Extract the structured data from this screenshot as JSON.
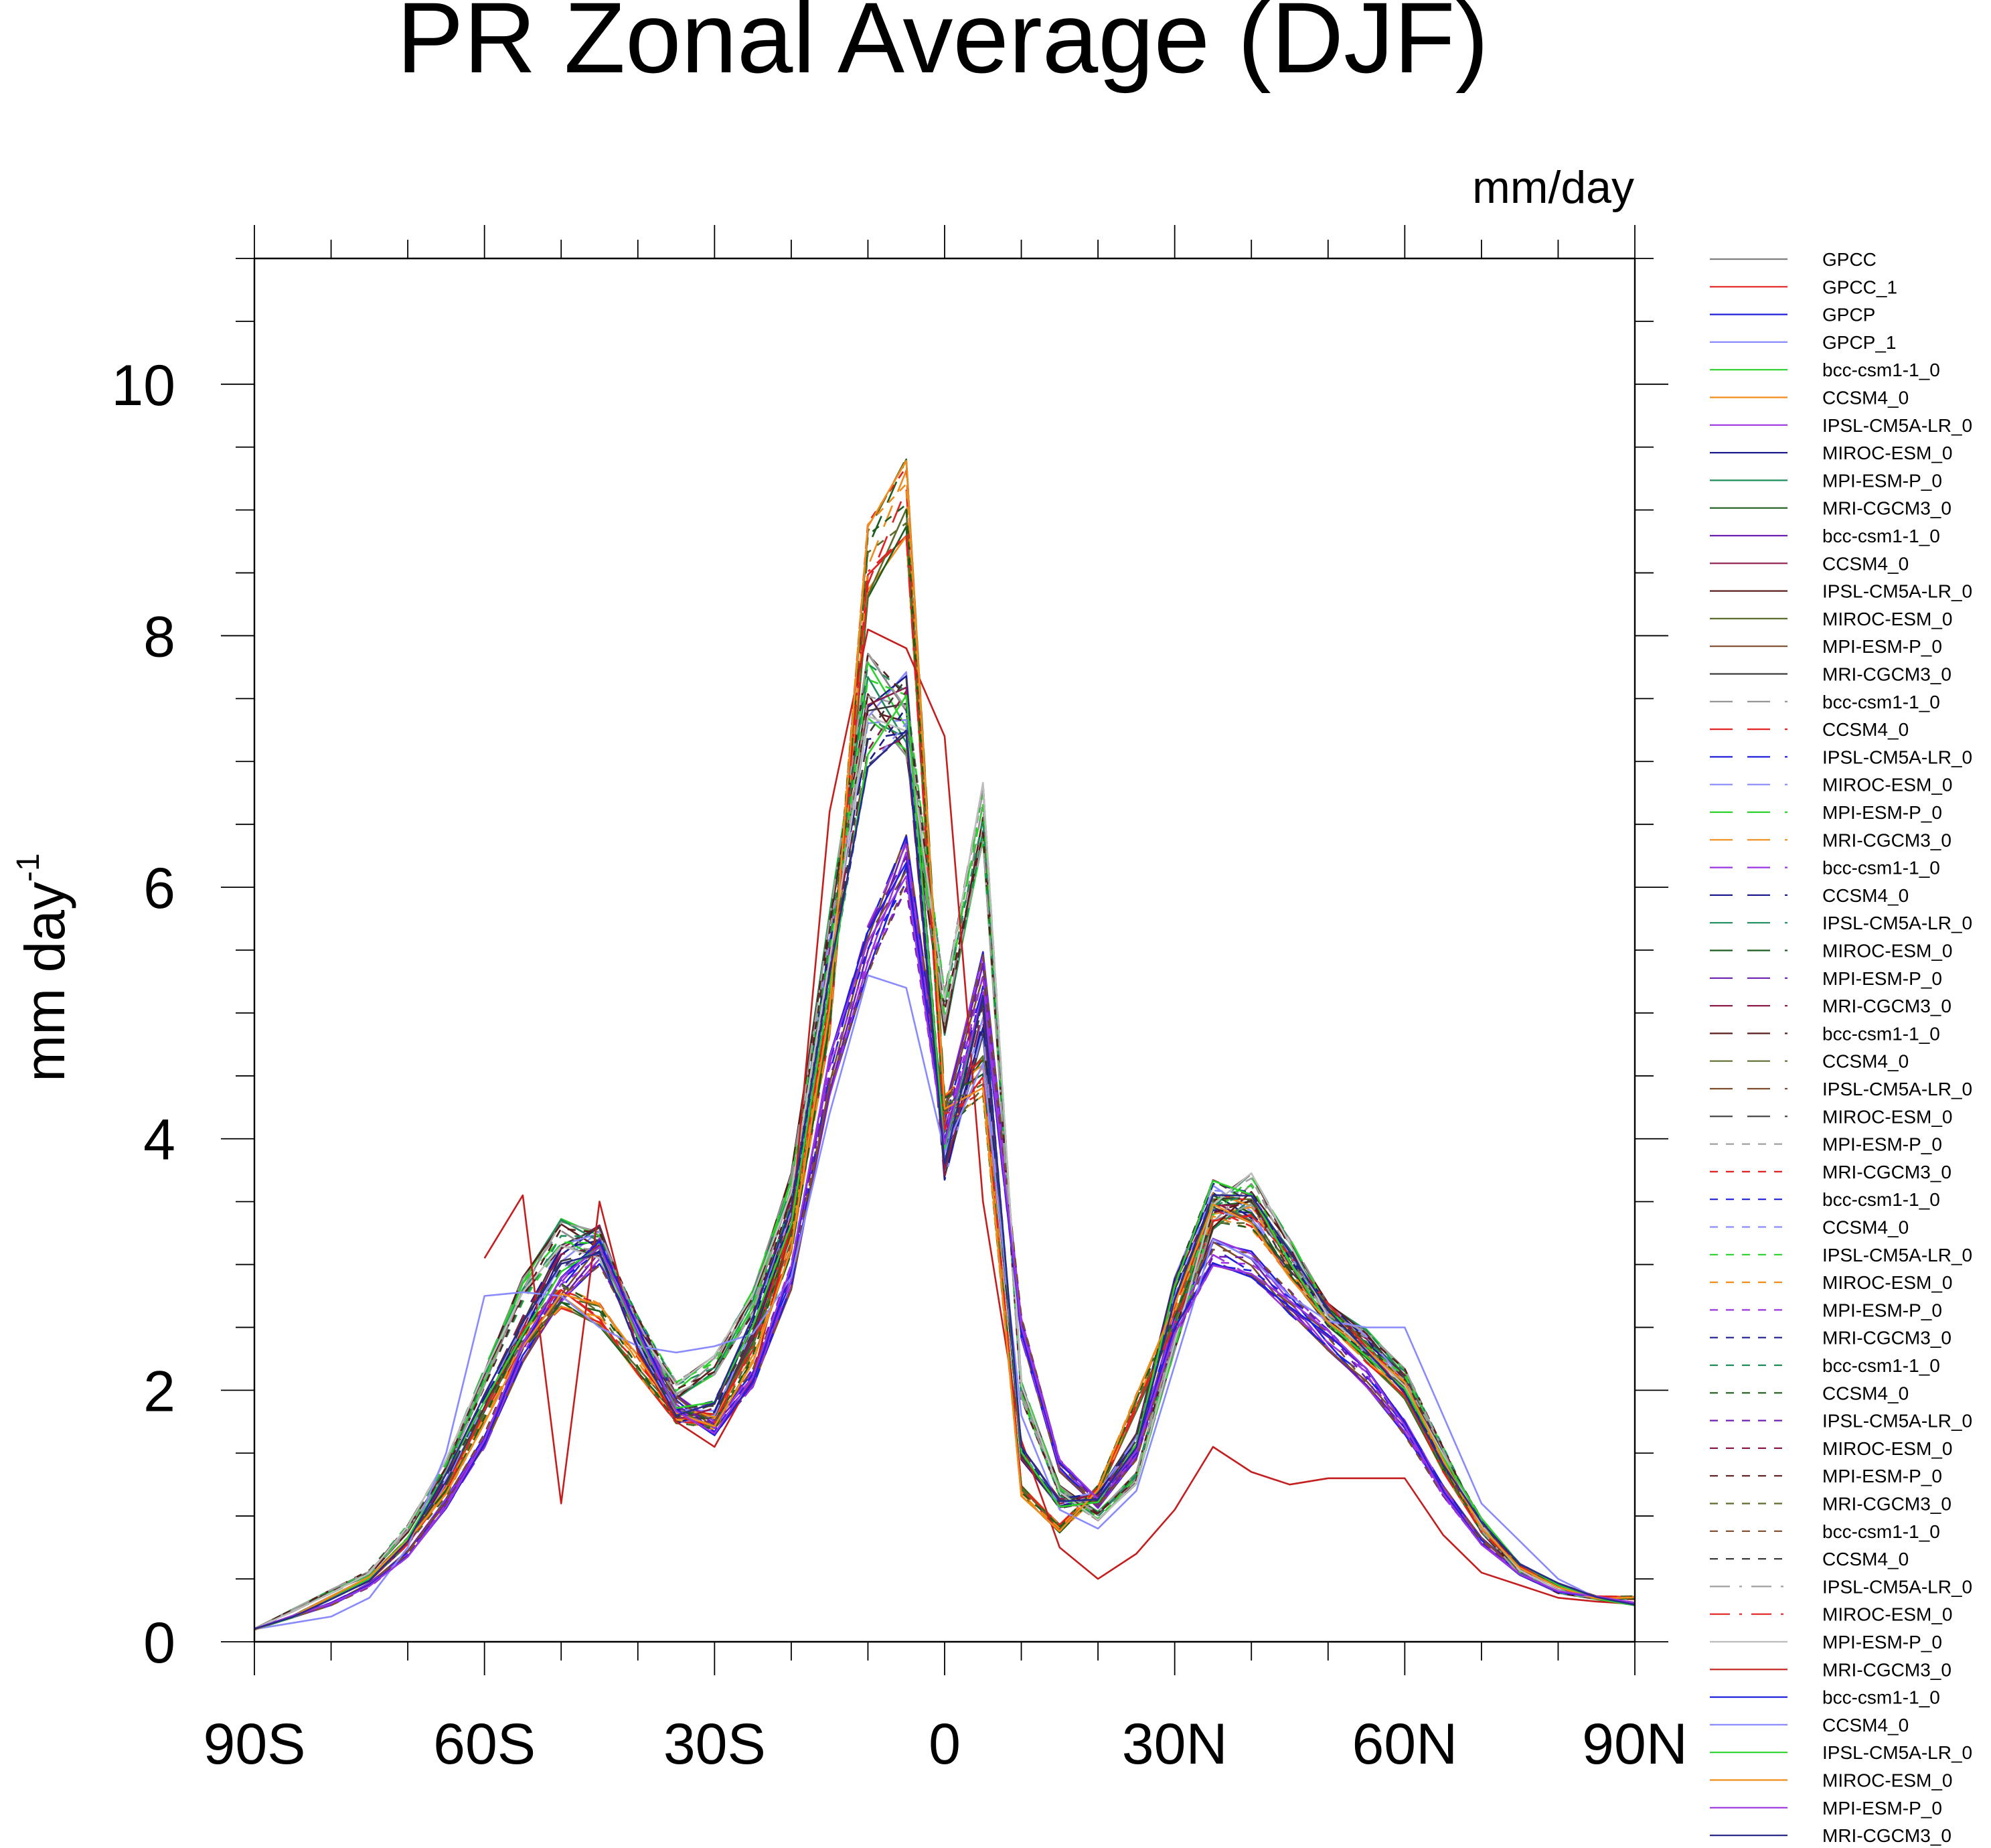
{
  "chart_data": {
    "type": "line",
    "title": "PR Zonal Average (DJF)",
    "units_label": "mm/day",
    "ylabel": "mm day",
    "ylabel_superscript": "-1",
    "xlabel": "",
    "xlim": [
      -90,
      90
    ],
    "ylim": [
      0,
      11
    ],
    "grid": false,
    "legend_position": "right",
    "x_ticks": [
      {
        "value": -90,
        "label": "90S"
      },
      {
        "value": -60,
        "label": "60S"
      },
      {
        "value": -30,
        "label": "30S"
      },
      {
        "value": 0,
        "label": "0"
      },
      {
        "value": 30,
        "label": "30N"
      },
      {
        "value": 60,
        "label": "60N"
      },
      {
        "value": 90,
        "label": "90N"
      }
    ],
    "y_ticks": [
      {
        "value": 0,
        "label": "0"
      },
      {
        "value": 2,
        "label": "2"
      },
      {
        "value": 4,
        "label": "4"
      },
      {
        "value": 6,
        "label": "6"
      },
      {
        "value": 8,
        "label": "8"
      },
      {
        "value": 10,
        "label": "10"
      }
    ],
    "x": [
      -90,
      -85,
      -80,
      -75,
      -70,
      -65,
      -60,
      -55,
      -50,
      -45,
      -40,
      -35,
      -30,
      -25,
      -20,
      -15,
      -10,
      -5,
      0,
      5,
      10,
      15,
      20,
      25,
      30,
      35,
      40,
      45,
      50,
      55,
      60,
      65,
      70,
      75,
      80,
      85,
      90
    ],
    "base_profiles": {
      "A": [
        0.1,
        0.25,
        0.4,
        0.55,
        0.9,
        1.4,
        2.1,
        2.8,
        3.25,
        3.15,
        2.5,
        2.0,
        2.2,
        2.7,
        3.6,
        5.6,
        7.6,
        7.3,
        5.0,
        6.6,
        2.0,
        1.2,
        1.0,
        1.3,
        2.4,
        3.4,
        3.6,
        3.1,
        2.6,
        2.4,
        2.1,
        1.5,
        0.9,
        0.55,
        0.4,
        0.35,
        0.3
      ],
      "B": [
        0.1,
        0.2,
        0.35,
        0.5,
        0.8,
        1.2,
        1.8,
        2.4,
        2.75,
        2.6,
        2.2,
        1.8,
        1.75,
        2.3,
        3.2,
        5.0,
        8.6,
        9.1,
        4.2,
        4.5,
        1.2,
        0.9,
        1.2,
        1.9,
        2.6,
        3.45,
        3.4,
        3.0,
        2.6,
        2.3,
        2.0,
        1.4,
        0.9,
        0.6,
        0.45,
        0.35,
        0.35
      ],
      "C": [
        0.1,
        0.2,
        0.3,
        0.45,
        0.7,
        1.1,
        1.6,
        2.3,
        2.8,
        3.1,
        2.5,
        1.9,
        1.7,
        2.1,
        2.9,
        4.5,
        5.5,
        6.2,
        4.1,
        5.3,
        2.5,
        1.4,
        1.1,
        1.5,
        2.5,
        3.1,
        3.0,
        2.7,
        2.4,
        2.1,
        1.7,
        1.2,
        0.8,
        0.55,
        0.4,
        0.35,
        0.3
      ],
      "D": [
        0.1,
        0.2,
        0.35,
        0.5,
        0.8,
        1.3,
        1.9,
        2.5,
        3.05,
        3.2,
        2.4,
        1.8,
        1.85,
        2.5,
        3.4,
        5.4,
        7.2,
        7.45,
        3.8,
        5.0,
        1.5,
        1.1,
        1.15,
        1.6,
        2.8,
        3.55,
        3.45,
        3.0,
        2.6,
        2.35,
        2.05,
        1.45,
        0.95,
        0.6,
        0.45,
        0.35,
        0.3
      ]
    },
    "series": [
      {
        "name": "GPCC",
        "color": "#7f7f7f",
        "dash": "solid",
        "profile": "A"
      },
      {
        "name": "GPCC_1",
        "color": "#e32121",
        "dash": "solid",
        "profile": "B"
      },
      {
        "name": "GPCP",
        "color": "#1f1fdf",
        "dash": "solid",
        "profile": "C"
      },
      {
        "name": "GPCP_1",
        "color": "#8a8aff",
        "dash": "solid",
        "profile": "D"
      },
      {
        "name": "bcc-csm1-1_0",
        "color": "#2bd12b",
        "dash": "solid",
        "profile": "A"
      },
      {
        "name": "CCSM4_0",
        "color": "#f08c1a",
        "dash": "solid",
        "profile": "B"
      },
      {
        "name": "IPSL-CM5A-LR_0",
        "color": "#9c35e0",
        "dash": "solid",
        "profile": "C"
      },
      {
        "name": "MIROC-ESM_0",
        "color": "#1c1c8c",
        "dash": "solid",
        "profile": "D"
      },
      {
        "name": "MPI-ESM-P_0",
        "color": "#1f8c5c",
        "dash": "solid",
        "profile": "A"
      },
      {
        "name": "MRI-CGCM3_0",
        "color": "#1c5c1c",
        "dash": "solid",
        "profile": "B"
      },
      {
        "name": "bcc-csm1-1_0",
        "color": "#6a1fb0",
        "dash": "solid",
        "profile": "C"
      },
      {
        "name": "CCSM4_0",
        "color": "#8c1c4c",
        "dash": "solid",
        "profile": "D"
      },
      {
        "name": "IPSL-CM5A-LR_0",
        "color": "#5c1c1c",
        "dash": "solid",
        "profile": "A"
      },
      {
        "name": "MIROC-ESM_0",
        "color": "#5c6c2c",
        "dash": "solid",
        "profile": "B"
      },
      {
        "name": "MPI-ESM-P_0",
        "color": "#7c4c2c",
        "dash": "solid",
        "profile": "C"
      },
      {
        "name": "MRI-CGCM3_0",
        "color": "#3c3c3c",
        "dash": "solid",
        "profile": "D"
      },
      {
        "name": "bcc-csm1-1_0",
        "color": "#8f8f8f",
        "dash": "long",
        "profile": "A"
      },
      {
        "name": "CCSM4_0",
        "color": "#e32121",
        "dash": "long",
        "profile": "B"
      },
      {
        "name": "IPSL-CM5A-LR_0",
        "color": "#1f1fdf",
        "dash": "long",
        "profile": "C"
      },
      {
        "name": "MIROC-ESM_0",
        "color": "#8a8aff",
        "dash": "long",
        "profile": "D"
      },
      {
        "name": "MPI-ESM-P_0",
        "color": "#2bd12b",
        "dash": "long",
        "profile": "A"
      },
      {
        "name": "MRI-CGCM3_0",
        "color": "#f08c1a",
        "dash": "long",
        "profile": "B"
      },
      {
        "name": "bcc-csm1-1_0",
        "color": "#9c35e0",
        "dash": "long",
        "profile": "C"
      },
      {
        "name": "CCSM4_0",
        "color": "#1c1c8c",
        "dash": "long",
        "profile": "D"
      },
      {
        "name": "IPSL-CM5A-LR_0",
        "color": "#1f8c5c",
        "dash": "long",
        "profile": "A"
      },
      {
        "name": "MIROC-ESM_0",
        "color": "#1c5c1c",
        "dash": "long",
        "profile": "B"
      },
      {
        "name": "MPI-ESM-P_0",
        "color": "#6a1fb0",
        "dash": "long",
        "profile": "C"
      },
      {
        "name": "MRI-CGCM3_0",
        "color": "#8c1c4c",
        "dash": "long",
        "profile": "D"
      },
      {
        "name": "bcc-csm1-1_0",
        "color": "#5c1c1c",
        "dash": "long",
        "profile": "A"
      },
      {
        "name": "CCSM4_0",
        "color": "#5c6c2c",
        "dash": "long",
        "profile": "B"
      },
      {
        "name": "IPSL-CM5A-LR_0",
        "color": "#7c4c2c",
        "dash": "long",
        "profile": "C"
      },
      {
        "name": "MIROC-ESM_0",
        "color": "#3c3c3c",
        "dash": "long",
        "profile": "D"
      },
      {
        "name": "MPI-ESM-P_0",
        "color": "#9f9f9f",
        "dash": "short",
        "profile": "A"
      },
      {
        "name": "MRI-CGCM3_0",
        "color": "#e32121",
        "dash": "short",
        "profile": "B"
      },
      {
        "name": "bcc-csm1-1_0",
        "color": "#1f1fdf",
        "dash": "short",
        "profile": "C"
      },
      {
        "name": "CCSM4_0",
        "color": "#8a8aff",
        "dash": "short",
        "profile": "D"
      },
      {
        "name": "IPSL-CM5A-LR_0",
        "color": "#2bd12b",
        "dash": "short",
        "profile": "A"
      },
      {
        "name": "MIROC-ESM_0",
        "color": "#f08c1a",
        "dash": "short",
        "profile": "B"
      },
      {
        "name": "MPI-ESM-P_0",
        "color": "#9c35e0",
        "dash": "short",
        "profile": "C"
      },
      {
        "name": "MRI-CGCM3_0",
        "color": "#1c1c8c",
        "dash": "short",
        "profile": "D"
      },
      {
        "name": "bcc-csm1-1_0",
        "color": "#1f8c5c",
        "dash": "short",
        "profile": "A"
      },
      {
        "name": "CCSM4_0",
        "color": "#1c5c1c",
        "dash": "short",
        "profile": "B"
      },
      {
        "name": "IPSL-CM5A-LR_0",
        "color": "#6a1fb0",
        "dash": "short",
        "profile": "C"
      },
      {
        "name": "MIROC-ESM_0",
        "color": "#8c1c4c",
        "dash": "short",
        "profile": "D"
      },
      {
        "name": "MPI-ESM-P_0",
        "color": "#5c1c1c",
        "dash": "short",
        "profile": "A"
      },
      {
        "name": "MRI-CGCM3_0",
        "color": "#5c6c2c",
        "dash": "short",
        "profile": "B"
      },
      {
        "name": "bcc-csm1-1_0",
        "color": "#7c4c2c",
        "dash": "short",
        "profile": "C"
      },
      {
        "name": "CCSM4_0",
        "color": "#3c3c3c",
        "dash": "short",
        "profile": "D"
      },
      {
        "name": "IPSL-CM5A-LR_0",
        "color": "#9f9f9f",
        "dash": "dashdot",
        "profile": "A"
      },
      {
        "name": "MIROC-ESM_0",
        "color": "#e32121",
        "dash": "dashdot",
        "profile": "B"
      },
      {
        "name": "MPI-ESM-P_0",
        "color": "#bdbdbd",
        "dash": "solid",
        "profile": "A"
      },
      {
        "name": "MRI-CGCM3_0",
        "color": "#c41e1e",
        "dash": "solid",
        "profile": "custom_red",
        "values": [
          null,
          null,
          null,
          null,
          null,
          null,
          3.05,
          3.55,
          1.1,
          3.5,
          2.3,
          1.75,
          1.55,
          2.1,
          3.3,
          6.6,
          8.05,
          7.9,
          7.2,
          3.5,
          1.6,
          0.75,
          0.5,
          0.7,
          1.05,
          1.55,
          1.35,
          1.25,
          1.3,
          1.3,
          1.3,
          0.85,
          0.55,
          0.45,
          0.35,
          0.32,
          0.3
        ]
      },
      {
        "name": "bcc-csm1-1_0",
        "color": "#1f1fdf",
        "dash": "solid",
        "profile": "C"
      },
      {
        "name": "CCSM4_0",
        "color": "#8a8aff",
        "dash": "solid",
        "profile": "custom_blue",
        "values": [
          0.1,
          0.15,
          0.2,
          0.35,
          0.75,
          1.5,
          2.75,
          2.78,
          2.75,
          2.5,
          2.35,
          2.3,
          2.35,
          2.45,
          2.9,
          4.2,
          5.3,
          5.2,
          3.9,
          4.6,
          1.8,
          1.05,
          0.9,
          1.2,
          2.2,
          3.2,
          3.05,
          2.75,
          2.55,
          2.5,
          2.5,
          1.8,
          1.1,
          0.8,
          0.5,
          0.35,
          0.3
        ]
      },
      {
        "name": "IPSL-CM5A-LR_0",
        "color": "#2bd12b",
        "dash": "solid",
        "profile": "D"
      },
      {
        "name": "MIROC-ESM_0",
        "color": "#f08c1a",
        "dash": "solid",
        "profile": "B"
      },
      {
        "name": "MPI-ESM-P_0",
        "color": "#9c35e0",
        "dash": "solid",
        "profile": "C"
      },
      {
        "name": "MRI-CGCM3_0",
        "color": "#2a2a8c",
        "dash": "solid",
        "profile": "D"
      }
    ]
  }
}
